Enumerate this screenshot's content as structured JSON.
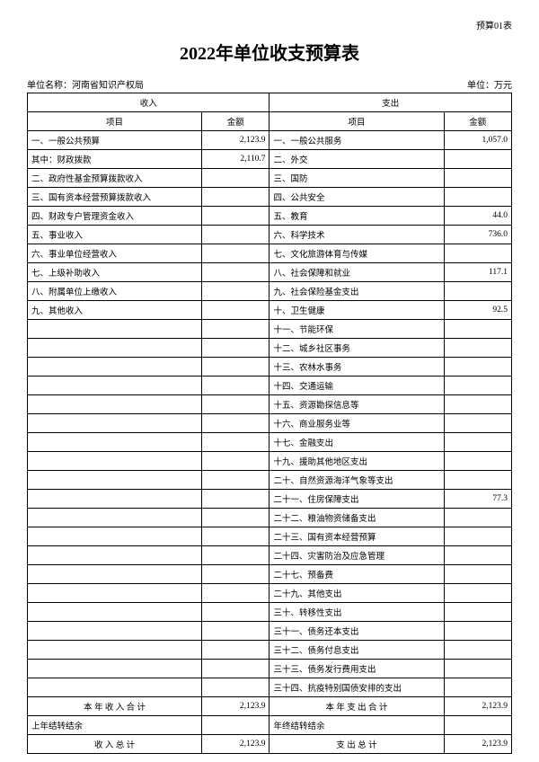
{
  "top_label": "预算01表",
  "title": "2022年单位收支预算表",
  "org_label": "单位名称：河南省知识产权局",
  "unit_label": "单位：万元",
  "headers": {
    "income": "收入",
    "expense": "支出",
    "item": "项目",
    "amount": "金额"
  },
  "rows": [
    {
      "li": "一、一般公共预算",
      "la": "2,123.9",
      "ri": "一、一般公共服务",
      "ra": "1,057.0"
    },
    {
      "li": "其中：财政拨款",
      "la": "2,110.7",
      "ri": "二、外交",
      "ra": ""
    },
    {
      "li": "二、政府性基金预算拨款收入",
      "la": "",
      "ri": "三、国防",
      "ra": ""
    },
    {
      "li": "三、国有资本经营预算拨款收入",
      "la": "",
      "ri": "四、公共安全",
      "ra": ""
    },
    {
      "li": "四、财政专户管理资金收入",
      "la": "",
      "ri": "五、教育",
      "ra": "44.0"
    },
    {
      "li": "五、事业收入",
      "la": "",
      "ri": "六、科学技术",
      "ra": "736.0"
    },
    {
      "li": "六、事业单位经营收入",
      "la": "",
      "ri": "七、文化旅游体育与传媒",
      "ra": ""
    },
    {
      "li": "七、上级补助收入",
      "la": "",
      "ri": "八、社会保障和就业",
      "ra": "117.1"
    },
    {
      "li": "八、附属单位上缴收入",
      "la": "",
      "ri": "九、社会保险基金支出",
      "ra": ""
    },
    {
      "li": "九、其他收入",
      "la": "",
      "ri": "十、卫生健康",
      "ra": "92.5"
    },
    {
      "li": "",
      "la": "",
      "ri": "十一、节能环保",
      "ra": ""
    },
    {
      "li": "",
      "la": "",
      "ri": "十二、城乡社区事务",
      "ra": ""
    },
    {
      "li": "",
      "la": "",
      "ri": "十三、农林水事务",
      "ra": ""
    },
    {
      "li": "",
      "la": "",
      "ri": "十四、交通运输",
      "ra": ""
    },
    {
      "li": "",
      "la": "",
      "ri": "十五、资源勘探信息等",
      "ra": ""
    },
    {
      "li": "",
      "la": "",
      "ri": "十六、商业服务业等",
      "ra": ""
    },
    {
      "li": "",
      "la": "",
      "ri": "十七、金融支出",
      "ra": ""
    },
    {
      "li": "",
      "la": "",
      "ri": "十九、援助其他地区支出",
      "ra": ""
    },
    {
      "li": "",
      "la": "",
      "ri": "二十、自然资源海洋气象等支出",
      "ra": ""
    },
    {
      "li": "",
      "la": "",
      "ri": "二十一、住房保障支出",
      "ra": "77.3"
    },
    {
      "li": "",
      "la": "",
      "ri": "二十二、粮油物资储备支出",
      "ra": ""
    },
    {
      "li": "",
      "la": "",
      "ri": "二十三、国有资本经营预算",
      "ra": ""
    },
    {
      "li": "",
      "la": "",
      "ri": "二十四、灾害防治及应急管理",
      "ra": ""
    },
    {
      "li": "",
      "la": "",
      "ri": "二十七、预备费",
      "ra": ""
    },
    {
      "li": "",
      "la": "",
      "ri": "二十九、其他支出",
      "ra": ""
    },
    {
      "li": "",
      "la": "",
      "ri": "三十、转移性支出",
      "ra": ""
    },
    {
      "li": "",
      "la": "",
      "ri": "三十一、债务还本支出",
      "ra": ""
    },
    {
      "li": "",
      "la": "",
      "ri": "三十二、债务付息支出",
      "ra": ""
    },
    {
      "li": "",
      "la": "",
      "ri": "三十三、债务发行费用支出",
      "ra": ""
    },
    {
      "li": "",
      "la": "",
      "ri": "三十四、抗疫特别国债安排的支出",
      "ra": ""
    }
  ],
  "totals": [
    {
      "li": "本 年 收 入 合 计",
      "la": "2,123.9",
      "ri": "本 年 支 出 合 计",
      "ra": "2,123.9",
      "lcenter": true,
      "rcenter": true
    },
    {
      "li": "上年结转结余",
      "la": "",
      "ri": "年终结转结余",
      "ra": "",
      "lcenter": false,
      "rcenter": false
    },
    {
      "li": "收 入 总 计",
      "la": "2,123.9",
      "ri": "支 出 总 计",
      "ra": "2,123.9",
      "lcenter": true,
      "rcenter": true
    }
  ]
}
